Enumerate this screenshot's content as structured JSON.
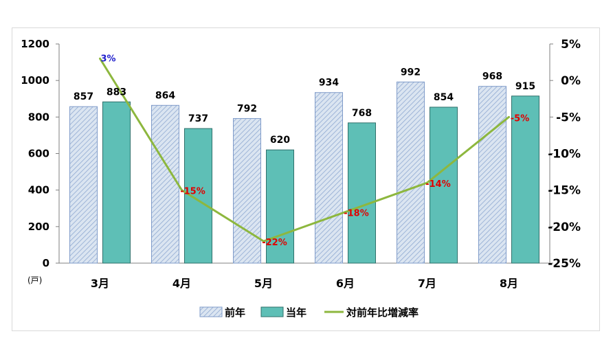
{
  "chart_data": {
    "type": "bar",
    "categories": [
      "3月",
      "4月",
      "5月",
      "6月",
      "7月",
      "8月"
    ],
    "series": [
      {
        "name": "前年",
        "values": [
          857,
          864,
          792,
          934,
          992,
          968
        ],
        "color": "#dbe5f1",
        "pattern": "diagonal-hatch"
      },
      {
        "name": "当年",
        "values": [
          883,
          737,
          620,
          768,
          854,
          915
        ],
        "color": "#5ebfb6"
      },
      {
        "name": "対前年比増減率",
        "type": "line",
        "axis": "right",
        "values": [
          3,
          -15,
          -22,
          -18,
          -14,
          -5
        ],
        "labels": [
          "3%",
          "-15%",
          "-22%",
          "-18%",
          "-14%",
          "-5%"
        ],
        "color": "#8db73e",
        "label_colors": [
          "#1f1fcc",
          "#e00000",
          "#e00000",
          "#e00000",
          "#e00000",
          "#e00000"
        ]
      }
    ],
    "y_left": {
      "ylim": [
        0,
        1200
      ],
      "ticks": [
        "0",
        "200",
        "400",
        "600",
        "800",
        "1000",
        "1200"
      ],
      "unit": "(戸)"
    },
    "y_right": {
      "ylim": [
        -25,
        5
      ],
      "ticks": [
        "5%",
        "0%",
        "-5%",
        "-10%",
        "-15%",
        "-20%",
        "-25%"
      ]
    },
    "legend_position": "bottom",
    "grid": false
  }
}
